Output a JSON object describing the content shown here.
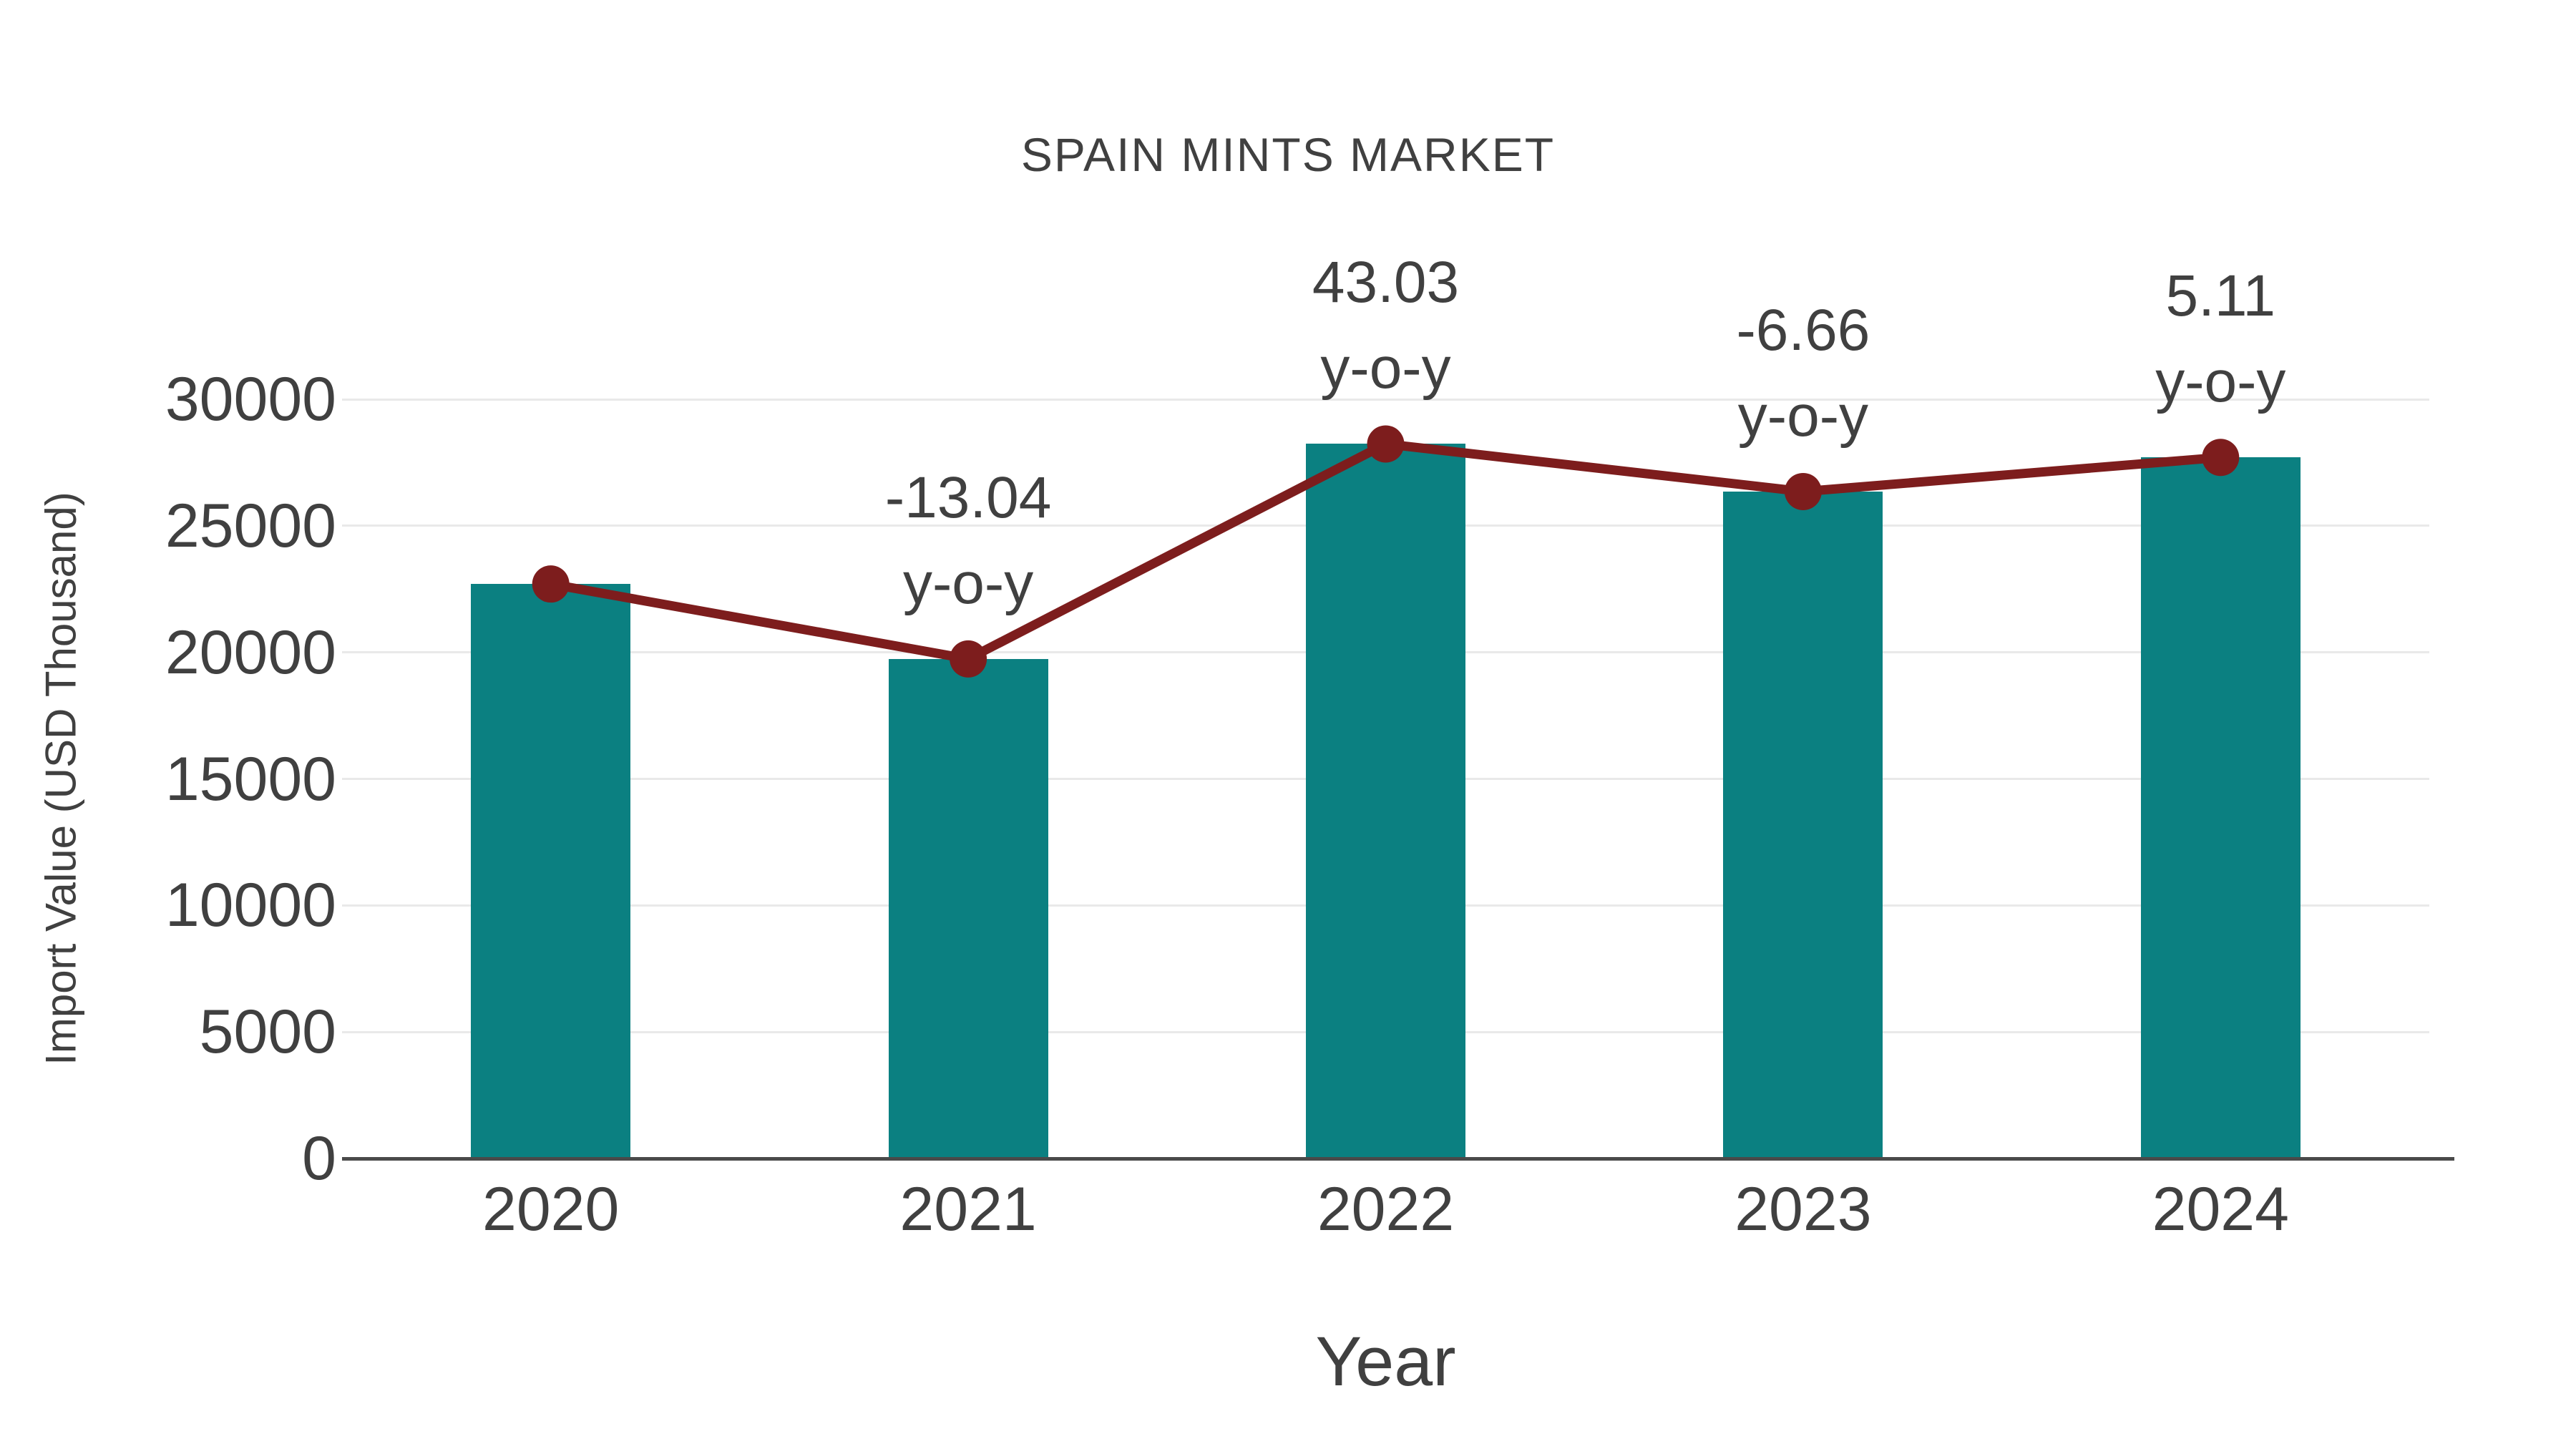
{
  "chart": {
    "title": "SPAIN MINTS MARKET",
    "xlabel": "Year",
    "ylabel": "Import Value (USD Thousand)",
    "categories": [
      "2020",
      "2021",
      "2022",
      "2023",
      "2024"
    ],
    "bar_values": [
      22700,
      19740,
      28234,
      26354,
      27703
    ],
    "y_tick_labels": [
      "0",
      "5000",
      "10000",
      "15000",
      "20000",
      "25000",
      "30000"
    ],
    "annotations": [
      null,
      {
        "line1": "-13.04",
        "line2": "y-o-y"
      },
      {
        "line1": "43.03",
        "line2": "y-o-y"
      },
      {
        "line1": "-6.66",
        "line2": "y-o-y"
      },
      {
        "line1": "5.11",
        "line2": "y-o-y"
      }
    ],
    "colors": {
      "bar": "#0B8081",
      "line": "#7D1D1D",
      "marker": "#7D1D1D",
      "text": "#404040",
      "grid": "#E9E9E9",
      "axis": "#4A4A4A",
      "background": "#FFFFFF"
    }
  },
  "chart_data": {
    "type": "bar",
    "categories": [
      "2020",
      "2021",
      "2022",
      "2023",
      "2024"
    ],
    "series": [
      {
        "name": "Import Value (USD Thousand) - bars",
        "type": "bar",
        "values": [
          22700,
          19740,
          28234,
          26354,
          27703
        ]
      },
      {
        "name": "Import Value (USD Thousand) - trend line",
        "type": "line",
        "values": [
          22700,
          19740,
          28234,
          26354,
          27703
        ]
      },
      {
        "name": "y-o-y change (%)",
        "type": "annotation",
        "values": [
          null,
          -13.04,
          43.03,
          -6.66,
          5.11
        ]
      }
    ],
    "title": "SPAIN MINTS MARKET",
    "xlabel": "Year",
    "ylabel": "Import Value (USD Thousand)",
    "ylim": [
      0,
      30000
    ],
    "y_tick_step": 5000,
    "grid": true,
    "legend": false,
    "annotation_note": "y-o-y percentage labels shown above 2021-2024 data points"
  }
}
